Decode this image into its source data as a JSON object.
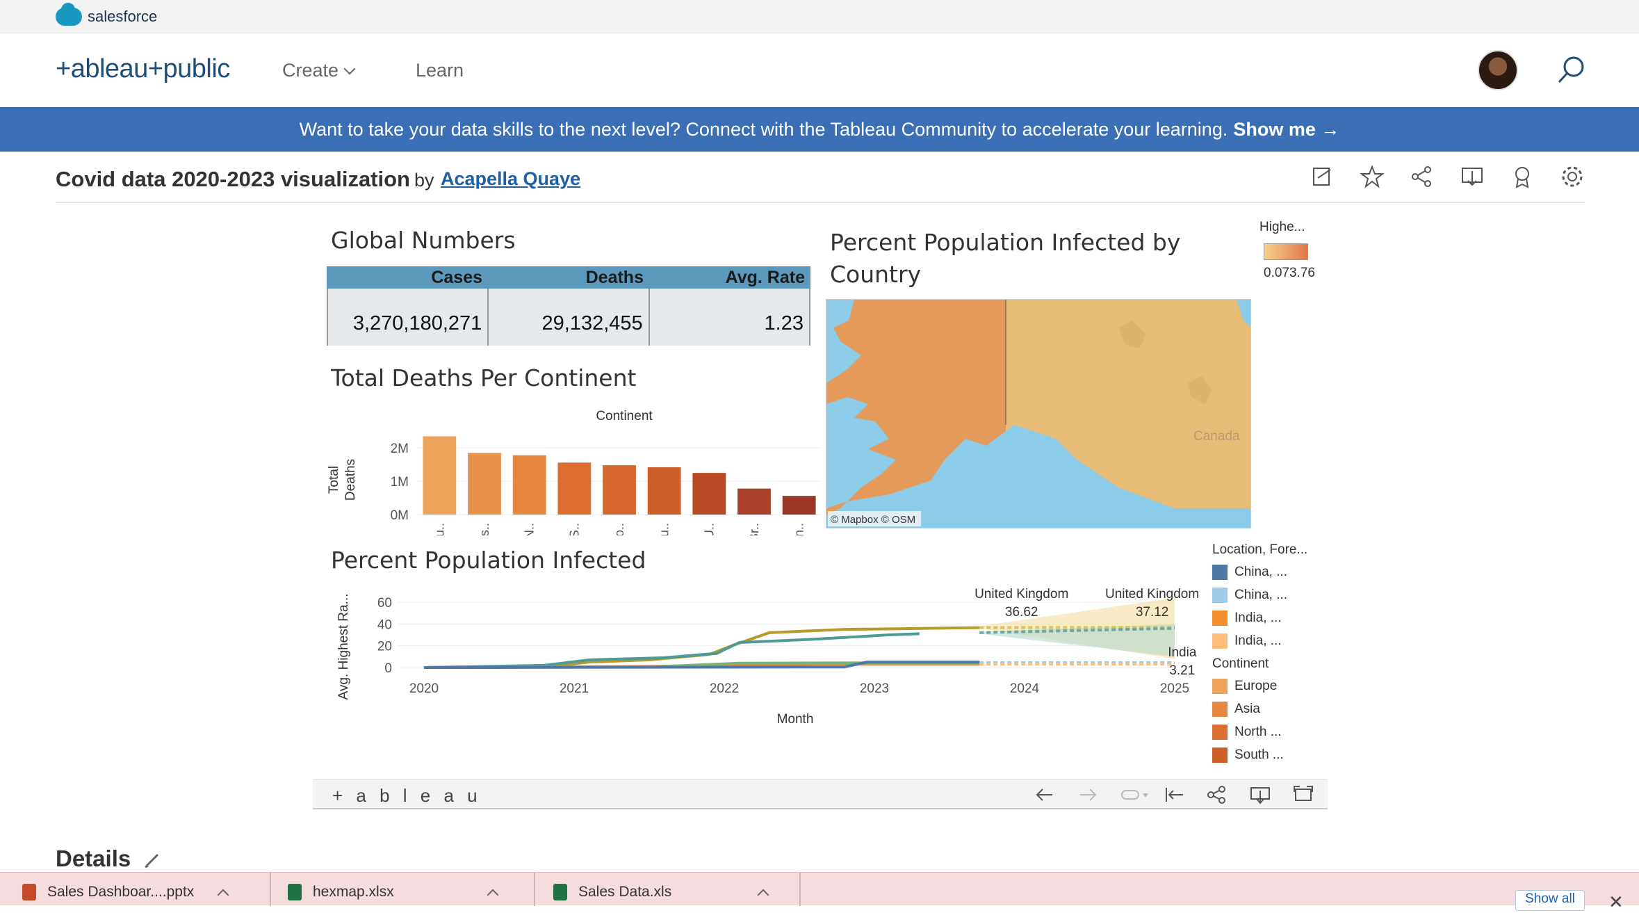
{
  "salesforce_bar": {
    "label": "salesforce"
  },
  "nav": {
    "logo": "+ableau+public",
    "create_label": "Create",
    "learn_label": "Learn"
  },
  "banner": {
    "text": "Want to take your data skills to the next level? Connect with the Tableau Community to accelerate your learning.",
    "cta": "Show me →"
  },
  "viz": {
    "title": "Covid data 2020-2023 visualization",
    "by": "by",
    "author": "Acapella Quaye"
  },
  "global_numbers": {
    "title": "Global Numbers",
    "headers": [
      "Cases",
      "Deaths",
      "Avg. Rate"
    ],
    "values": [
      "3,270,180,271",
      "29,132,455",
      "1.23"
    ]
  },
  "map": {
    "title_line1": "Percent Population Infected by",
    "title_line2": "Country",
    "canada_label": "Canada",
    "attribution": "© Mapbox  © OSM",
    "legend_title": "Highe...",
    "legend_values": "0.073.76"
  },
  "chart_data": [
    {
      "type": "bar",
      "title": "Total Deaths Per Continent",
      "column_header": "Continent",
      "ylabel": "Total Deaths",
      "yticks": [
        "2M",
        "1M",
        "0M"
      ],
      "ylim": [
        0,
        2400000
      ],
      "categories": [
        "Eu..",
        "As..",
        "N..",
        "S..",
        "Lo..",
        "Eu..",
        "U..",
        "Br..",
        "In.."
      ],
      "values": [
        2350000,
        1850000,
        1780000,
        1560000,
        1480000,
        1420000,
        1250000,
        780000,
        560000
      ],
      "colors": [
        "#eca45a",
        "#e8914a",
        "#e68742",
        "#dc6f30",
        "#d6682d",
        "#cd5f2a",
        "#b94a26",
        "#a8402a",
        "#9c3626"
      ]
    },
    {
      "type": "line",
      "title": "Percent Population Infected",
      "xlabel": "Month",
      "ylabel": "Avg. Highest Ra...",
      "x_ticks": [
        "2020",
        "2021",
        "2022",
        "2023",
        "2024",
        "2025"
      ],
      "y_ticks": [
        "60",
        "40",
        "20",
        "0"
      ],
      "ylim": [
        0,
        60
      ],
      "annotations": [
        {
          "label": "United Kingdom",
          "value": "36.62"
        },
        {
          "label": "United Kingdom",
          "value": "37.12"
        },
        {
          "label": "India",
          "value": "3.21"
        }
      ]
    }
  ],
  "line_legend": {
    "title1": "Location, Fore...",
    "items1": [
      {
        "label": "China, ...",
        "color": "#4e79a7"
      },
      {
        "label": "China, ...",
        "color": "#a0cbe8"
      },
      {
        "label": "India, ...",
        "color": "#f28e2b"
      },
      {
        "label": "India, ...",
        "color": "#ffbe7d"
      }
    ],
    "title2": "Continent",
    "items2": [
      {
        "label": "Europe",
        "color": "#eca45a"
      },
      {
        "label": "Asia",
        "color": "#e68742"
      },
      {
        "label": "North ...",
        "color": "#dc6f30"
      },
      {
        "label": "South ...",
        "color": "#cd5f2a"
      }
    ]
  },
  "toolbar": {
    "logo": "+ a b l e a u"
  },
  "details": {
    "label": "Details"
  },
  "downloads": {
    "items": [
      "Sales Dashboar....pptx",
      "hexmap.xlsx",
      "Sales Data.xls"
    ],
    "show_all": "Show all"
  }
}
